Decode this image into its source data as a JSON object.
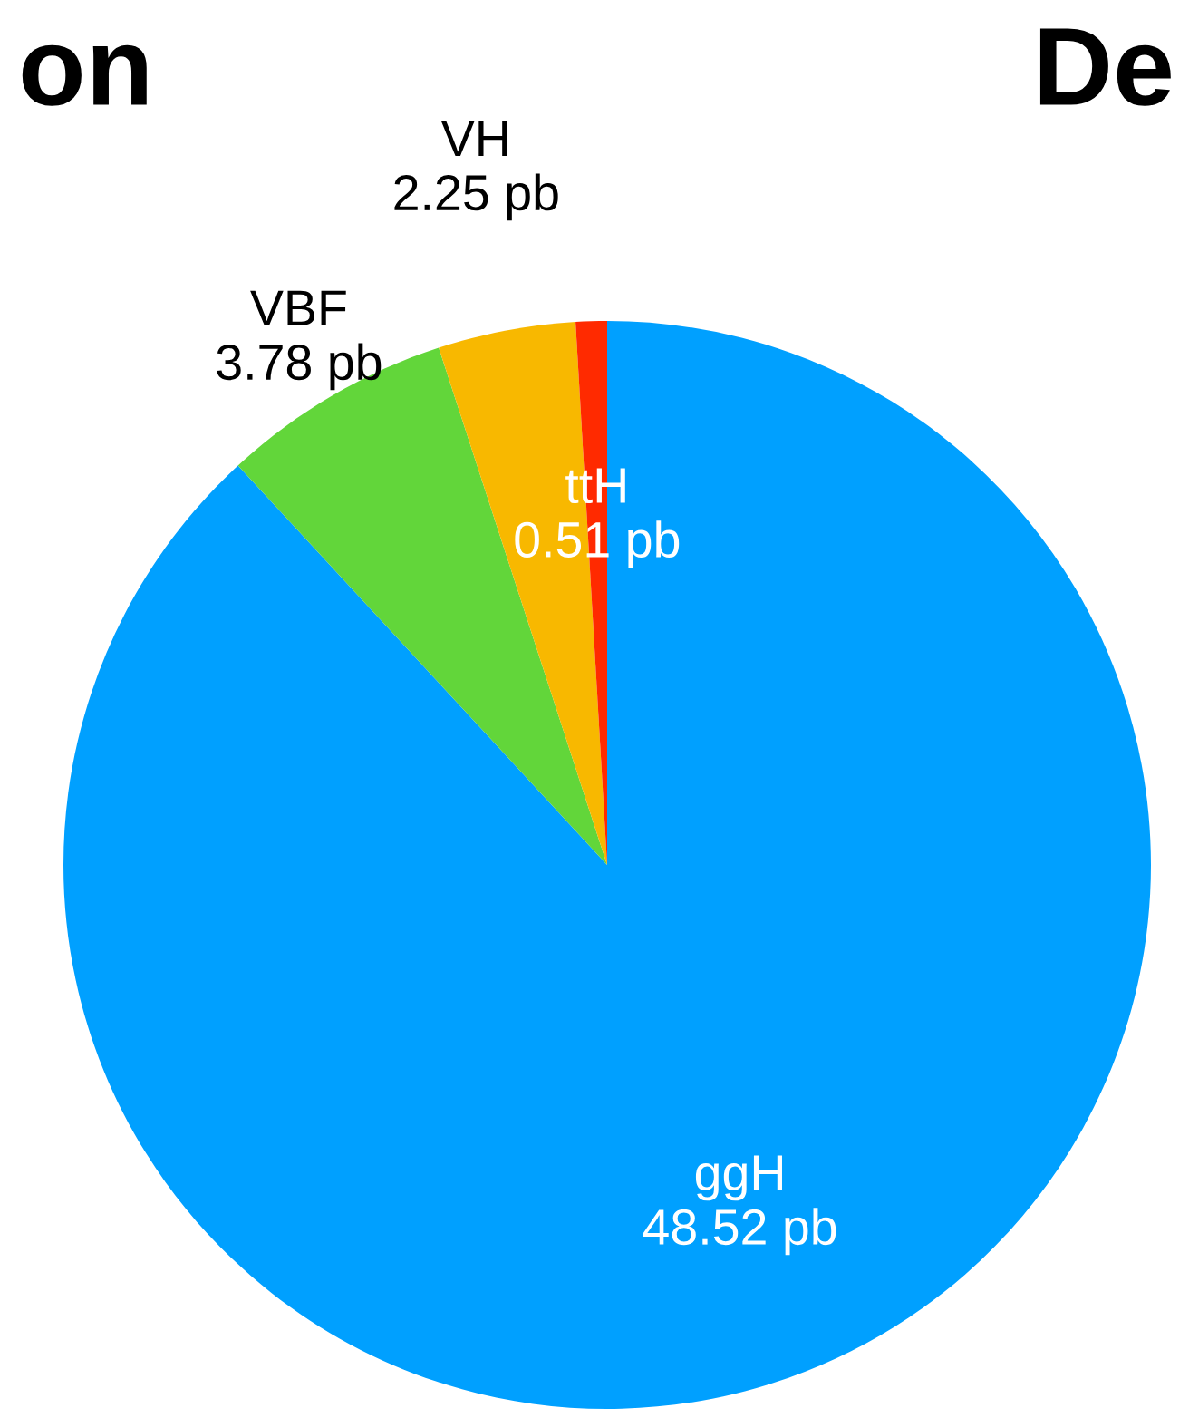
{
  "chart_data": {
    "type": "pie",
    "categories": [
      "ggH",
      "VBF",
      "VH",
      "ttH"
    ],
    "values": [
      48.52,
      3.78,
      2.25,
      0.51
    ],
    "value_labels": [
      "48.52 pb",
      "3.78 pb",
      "2.25 pb",
      "0.51 pb"
    ],
    "colors": [
      "#00a0ff",
      "#62d63a",
      "#f8b800",
      "#ff2a00"
    ],
    "annotations": [
      "on",
      "De"
    ],
    "legend": false
  }
}
